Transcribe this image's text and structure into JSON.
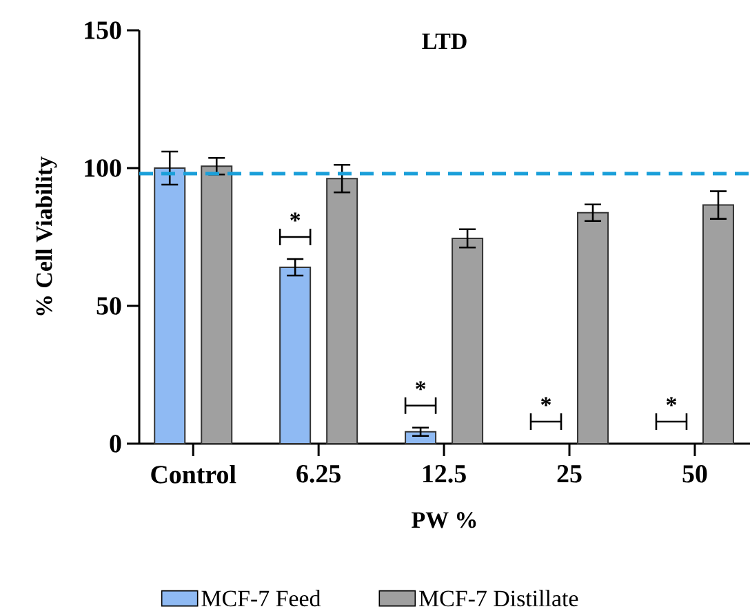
{
  "chart_data": {
    "type": "bar",
    "title": "LTD",
    "xlabel": "PW %",
    "ylabel": "% Cell Viability",
    "categories": [
      "Control",
      "6.25",
      "12.5",
      "25",
      "50"
    ],
    "series": [
      {
        "name": "MCF-7 Feed",
        "color": "#8fbaf3",
        "values": [
          100,
          64,
          4.3,
          null,
          null
        ],
        "errors": [
          6,
          3,
          1.5,
          null,
          null
        ]
      },
      {
        "name": "MCF-7 Distillate",
        "color": "#a0a0a0",
        "values": [
          100.7,
          96.2,
          74.5,
          83.8,
          86.6
        ],
        "errors": [
          3,
          5,
          3.3,
          3,
          5
        ]
      }
    ],
    "ylim": [
      0,
      150
    ],
    "yticks": [
      0,
      50,
      100,
      150
    ],
    "ref_lines": [
      {
        "axis": "y",
        "value": 98,
        "color": "#1a9fd9",
        "line_style": "dashed"
      }
    ],
    "annotations": [
      "*",
      "*",
      "*",
      "*"
    ],
    "legend": "bottom"
  }
}
